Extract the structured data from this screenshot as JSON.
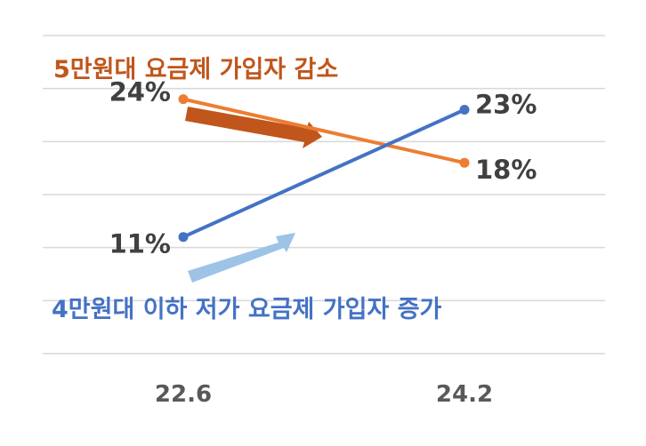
{
  "chart_data": {
    "type": "line",
    "categories": [
      "22.6",
      "24.2"
    ],
    "series": [
      {
        "name": "5만원대 요금제 가입자 감소",
        "values": [
          24,
          18
        ],
        "labels": [
          "24%",
          "18%"
        ],
        "color": "#ed7d31"
      },
      {
        "name": "4만원대 이하 저가 요금제 가입자 증가",
        "values": [
          11,
          23
        ],
        "labels": [
          "11%",
          "23%"
        ],
        "color": "#4472c4"
      }
    ],
    "ylim": [
      0,
      30
    ],
    "grid": true,
    "title": "",
    "xlabel": "",
    "ylabel": "",
    "annotations": [
      {
        "text": "5만원대 요금제 가입자 감소",
        "color": "#c0561b",
        "arrow_color": "#c0561b",
        "direction": "down"
      },
      {
        "text": "4만원대 이하 저가 요금제 가입자 증가",
        "color": "#4472c4",
        "arrow_color": "#9dc3e6",
        "direction": "up"
      }
    ]
  }
}
